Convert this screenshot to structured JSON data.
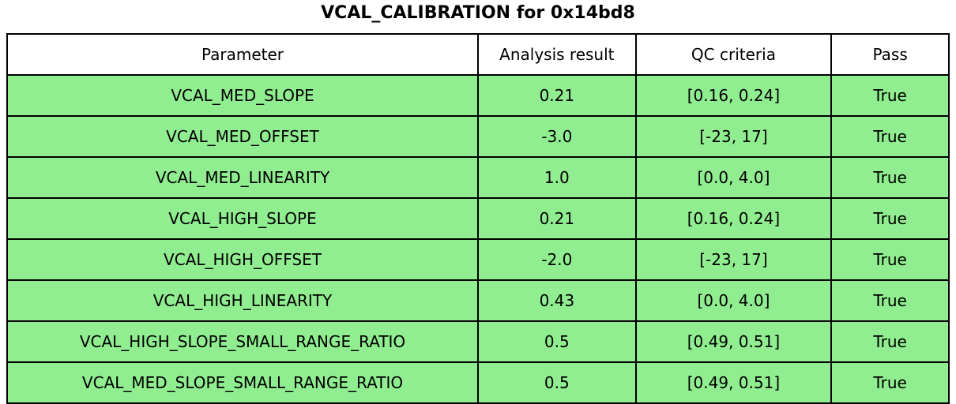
{
  "chart_data": {
    "type": "table",
    "title": "VCAL_CALIBRATION for 0x14bd8",
    "columns": [
      "Parameter",
      "Analysis result",
      "QC criteria",
      "Pass"
    ],
    "rows": [
      [
        "VCAL_MED_SLOPE",
        "0.21",
        "[0.16, 0.24]",
        "True"
      ],
      [
        "VCAL_MED_OFFSET",
        "-3.0",
        "[-23, 17]",
        "True"
      ],
      [
        "VCAL_MED_LINEARITY",
        "1.0",
        "[0.0, 4.0]",
        "True"
      ],
      [
        "VCAL_HIGH_SLOPE",
        "0.21",
        "[0.16, 0.24]",
        "True"
      ],
      [
        "VCAL_HIGH_OFFSET",
        "-2.0",
        "[-23, 17]",
        "True"
      ],
      [
        "VCAL_HIGH_LINEARITY",
        "0.43",
        "[0.0, 4.0]",
        "True"
      ],
      [
        "VCAL_HIGH_SLOPE_SMALL_RANGE_RATIO",
        "0.5",
        "[0.49, 0.51]",
        "True"
      ],
      [
        "VCAL_MED_SLOPE_SMALL_RANGE_RATIO",
        "0.5",
        "[0.49, 0.51]",
        "True"
      ]
    ],
    "layout": {
      "legend": "none",
      "grid": "table-borders"
    },
    "colors": {
      "pass_row_bg": "#90EE90",
      "header_bg": "#ffffff",
      "border": "#000000",
      "text": "#000000"
    }
  }
}
